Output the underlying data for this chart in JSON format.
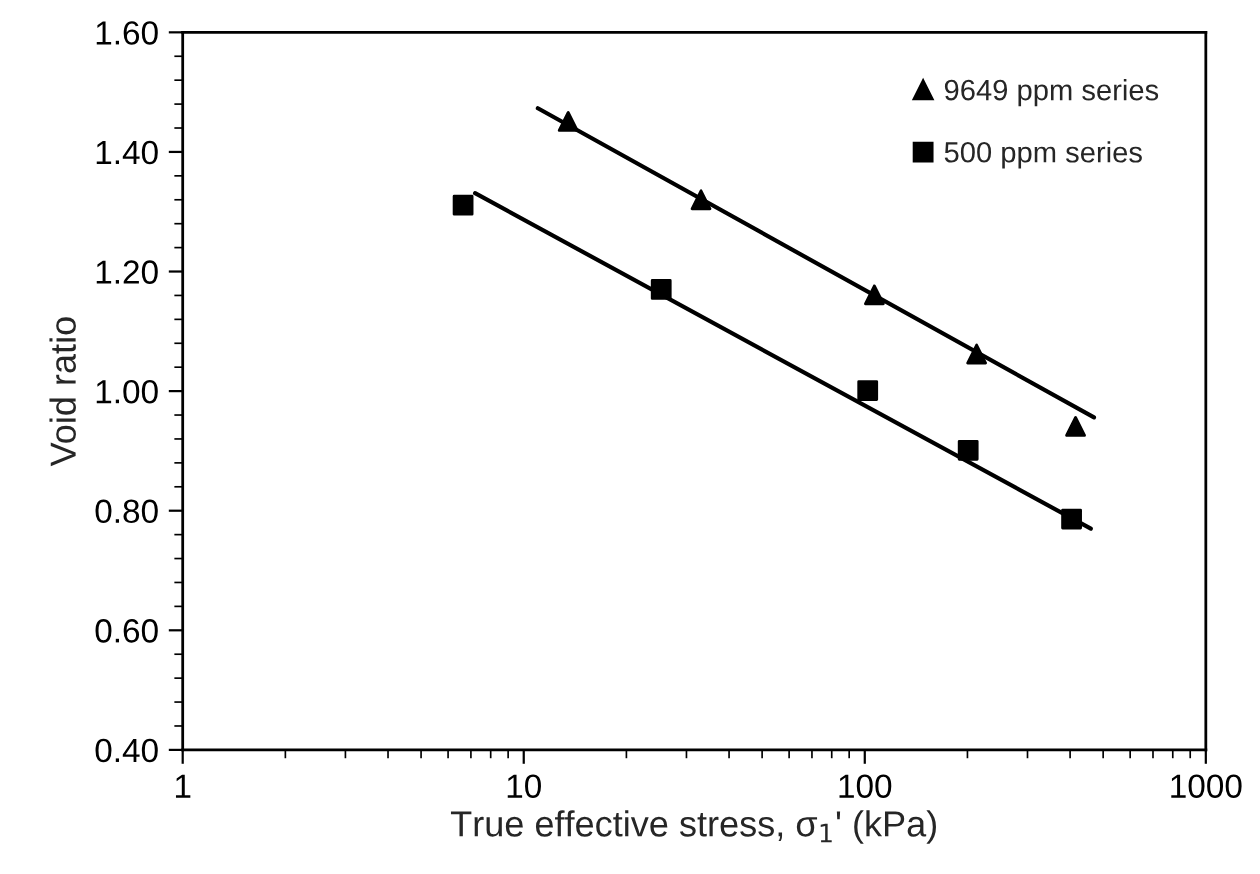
{
  "chart_data": {
    "type": "scatter",
    "xlabel": "True effective stress, σ$_{1}$' (kPa)",
    "ylabel": "Void ratio",
    "log": "x",
    "xlim": [
      1,
      1000
    ],
    "xticks": [
      1,
      10,
      100,
      1000
    ],
    "ylim": [
      0.4,
      1.6
    ],
    "yticks": [
      {
        "value": 0.4,
        "label": "0.40"
      },
      {
        "value": 0.6,
        "label": "0.60"
      },
      {
        "value": 0.8,
        "label": "0.80"
      },
      {
        "value": 1.0,
        "label": "1.00"
      },
      {
        "value": 1.2,
        "label": "1.20"
      },
      {
        "value": 1.4,
        "label": "1.40"
      },
      {
        "value": 1.6,
        "label": "1.60"
      }
    ],
    "grid": false,
    "legend": "top right",
    "series": [
      {
        "name": "9649 ppm series",
        "marker": "triangle",
        "color": "#000000",
        "x": [
          13.5,
          33.1,
          106.7,
          212.8,
          415
        ],
        "values": [
          1.451,
          1.32,
          1.161,
          1.062,
          0.941
        ]
      },
      {
        "name": "500 ppm series",
        "marker": "square",
        "color": "#000000",
        "x": [
          6.64,
          25.3,
          102,
          201,
          404
        ],
        "values": [
          1.311,
          1.17,
          1.001,
          0.901,
          0.786
        ]
      },
      {
        "type": "line",
        "marker": "none",
        "line_style": "solid",
        "color": "#000000",
        "x": [
          11.0,
          470
        ],
        "values": [
          1.473,
          0.956
        ]
      },
      {
        "type": "line",
        "marker": "none",
        "line_style": "solid",
        "color": "#000000",
        "x": [
          7.2,
          460
        ],
        "values": [
          1.331,
          0.77
        ]
      }
    ]
  }
}
